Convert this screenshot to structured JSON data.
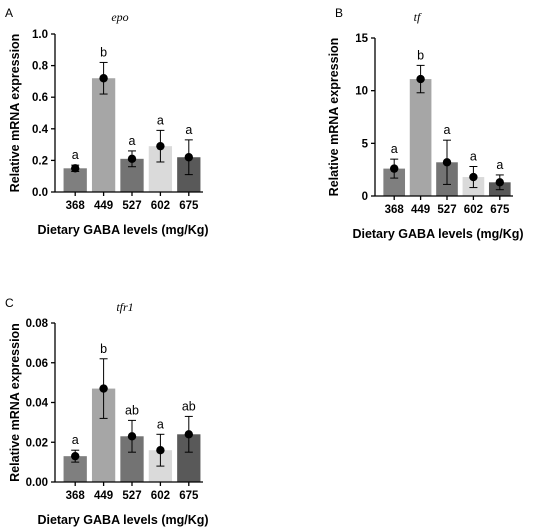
{
  "chart_data": [
    {
      "panel": "A",
      "title": "epo",
      "type": "bar",
      "categories": [
        "368",
        "449",
        "527",
        "602",
        "675"
      ],
      "values": [
        0.15,
        0.72,
        0.21,
        0.29,
        0.22
      ],
      "errors": [
        0.02,
        0.1,
        0.05,
        0.1,
        0.11
      ],
      "significance": [
        "a",
        "b",
        "a",
        "a",
        "a"
      ],
      "ylim": [
        0,
        1.0
      ],
      "yticks": [
        "0.0",
        "0.2",
        "0.4",
        "0.6",
        "0.8",
        "1.0"
      ],
      "ytick_values": [
        0,
        0.2,
        0.4,
        0.6,
        0.8,
        1.0
      ],
      "xlabel": "Dietary GABA levels (mg/Kg)",
      "ylabel": "Relative mRNA expression"
    },
    {
      "panel": "B",
      "title": "tf",
      "type": "bar",
      "categories": [
        "368",
        "449",
        "527",
        "602",
        "675"
      ],
      "values": [
        2.6,
        11.1,
        3.2,
        1.8,
        1.3
      ],
      "errors": [
        0.9,
        1.3,
        2.1,
        1.0,
        0.7
      ],
      "significance": [
        "a",
        "b",
        "a",
        "a",
        "a"
      ],
      "ylim": [
        0,
        15
      ],
      "yticks": [
        "0",
        "5",
        "10",
        "15"
      ],
      "ytick_values": [
        0,
        5,
        10,
        15
      ],
      "xlabel": "Dietary GABA levels (mg/Kg)",
      "ylabel": "Relative mRNA expression"
    },
    {
      "panel": "C",
      "title": "tfr1",
      "type": "bar",
      "categories": [
        "368",
        "449",
        "527",
        "602",
        "675"
      ],
      "values": [
        0.013,
        0.047,
        0.023,
        0.016,
        0.024
      ],
      "errors": [
        0.003,
        0.015,
        0.008,
        0.008,
        0.009
      ],
      "significance": [
        "a",
        "b",
        "ab",
        "a",
        "ab"
      ],
      "ylim": [
        0,
        0.08
      ],
      "yticks": [
        "0.00",
        "0.02",
        "0.04",
        "0.06",
        "0.08"
      ],
      "ytick_values": [
        0,
        0.02,
        0.04,
        0.06,
        0.08
      ],
      "xlabel": "Dietary GABA levels (mg/Kg)",
      "ylabel": "Relative mRNA expression"
    }
  ],
  "bar_colors": [
    "#7f7f7f",
    "#a6a6a6",
    "#737373",
    "#dadada",
    "#595959"
  ]
}
